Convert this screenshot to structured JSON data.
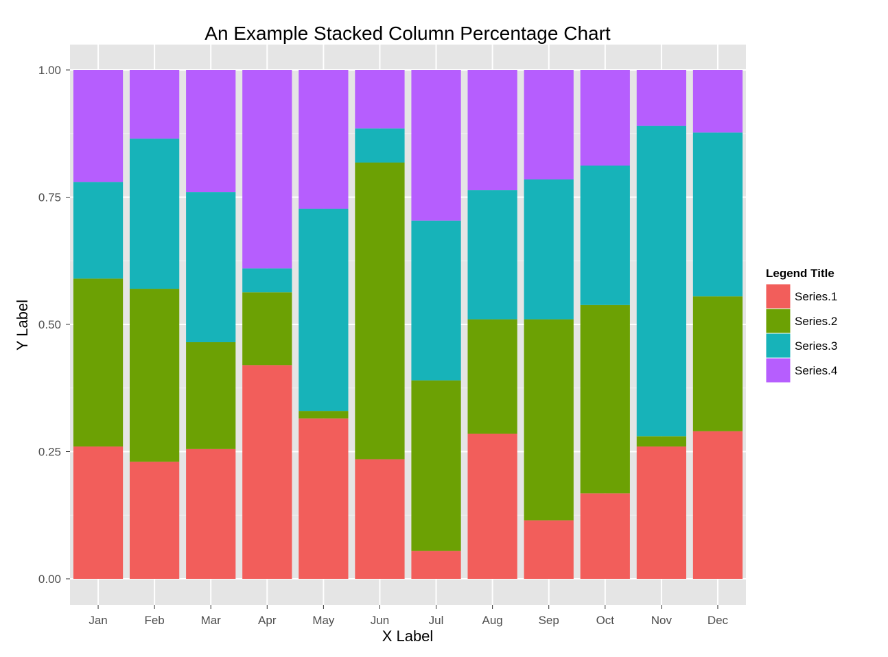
{
  "chart_data": {
    "type": "bar",
    "stacked": true,
    "percent": true,
    "title": "An Example Stacked Column Percentage Chart",
    "xlabel": "X Label",
    "ylabel": "Y Label",
    "ylim": [
      0,
      1
    ],
    "yticks": [
      "0.00",
      "0.25",
      "0.50",
      "0.75",
      "1.00"
    ],
    "grid": true,
    "legend_position": "right",
    "legend_title": "Legend Title",
    "categories": [
      "Jan",
      "Feb",
      "Mar",
      "Apr",
      "May",
      "Jun",
      "Jul",
      "Aug",
      "Sep",
      "Oct",
      "Nov",
      "Dec"
    ],
    "series": [
      {
        "name": "Series.1",
        "color": "#F25E5B",
        "values": [
          0.26,
          0.23,
          0.255,
          0.42,
          0.315,
          0.235,
          0.055,
          0.285,
          0.115,
          0.168,
          0.26,
          0.29
        ]
      },
      {
        "name": "Series.2",
        "color": "#6CA104",
        "values": [
          0.33,
          0.34,
          0.21,
          0.143,
          0.015,
          0.583,
          0.335,
          0.225,
          0.395,
          0.37,
          0.02,
          0.265
        ]
      },
      {
        "name": "Series.3",
        "color": "#17B3B9",
        "values": [
          0.19,
          0.295,
          0.295,
          0.047,
          0.397,
          0.067,
          0.314,
          0.254,
          0.275,
          0.274,
          0.61,
          0.322
        ]
      },
      {
        "name": "Series.4",
        "color": "#B65EFE",
        "values": [
          0.22,
          0.135,
          0.24,
          0.39,
          0.273,
          0.115,
          0.296,
          0.236,
          0.215,
          0.188,
          0.11,
          0.123
        ]
      }
    ]
  }
}
